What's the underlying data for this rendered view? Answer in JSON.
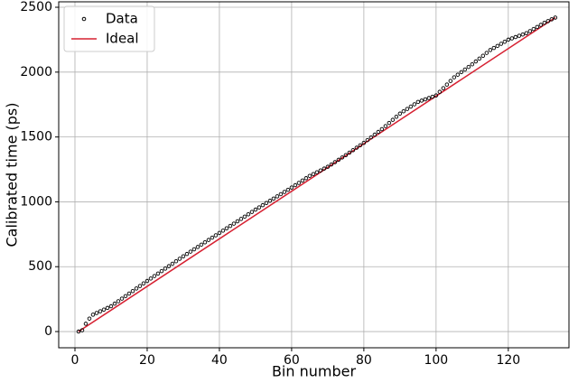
{
  "chart_data": {
    "type": "scatter",
    "xlabel": "Bin number",
    "ylabel": "Calibrated time (ps)",
    "xlim": [
      -4.5,
      136.8
    ],
    "ylim": [
      -125,
      2542
    ],
    "xticks": [
      0,
      20,
      40,
      60,
      80,
      100,
      120
    ],
    "yticks": [
      0,
      500,
      1000,
      1500,
      2000,
      2500
    ],
    "grid": true,
    "legend": "upper left",
    "series": [
      {
        "name": "Data",
        "type": "scatter",
        "color": "#000000",
        "x": [
          1,
          2,
          3,
          4,
          5,
          6,
          7,
          8,
          9,
          10,
          11,
          12,
          13,
          14,
          15,
          16,
          17,
          18,
          19,
          20,
          21,
          22,
          23,
          24,
          25,
          26,
          27,
          28,
          29,
          30,
          31,
          32,
          33,
          34,
          35,
          36,
          37,
          38,
          39,
          40,
          41,
          42,
          43,
          44,
          45,
          46,
          47,
          48,
          49,
          50,
          51,
          52,
          53,
          54,
          55,
          56,
          57,
          58,
          59,
          60,
          61,
          62,
          63,
          64,
          65,
          66,
          67,
          68,
          69,
          70,
          71,
          72,
          73,
          74,
          75,
          76,
          77,
          78,
          79,
          80,
          81,
          82,
          83,
          84,
          85,
          86,
          87,
          88,
          89,
          90,
          91,
          92,
          93,
          94,
          95,
          96,
          97,
          98,
          99,
          100,
          101,
          102,
          103,
          104,
          105,
          106,
          107,
          108,
          109,
          110,
          111,
          112,
          113,
          114,
          115,
          116,
          117,
          118,
          119,
          120,
          121,
          122,
          123,
          124,
          125,
          126,
          127,
          128,
          129,
          130,
          131,
          132,
          133
        ],
        "values": [
          0,
          10,
          60,
          100,
          130,
          143,
          156,
          169,
          182,
          195,
          215,
          234,
          254,
          273,
          293,
          312,
          332,
          351,
          371,
          390,
          409,
          428,
          447,
          466,
          485,
          504,
          523,
          542,
          561,
          580,
          598,
          616,
          634,
          652,
          670,
          688,
          706,
          724,
          742,
          760,
          778,
          796,
          814,
          832,
          850,
          868,
          886,
          904,
          922,
          940,
          957,
          974,
          991,
          1008,
          1025,
          1042,
          1059,
          1076,
          1093,
          1110,
          1128,
          1146,
          1164,
          1182,
          1200,
          1214,
          1228,
          1242,
          1256,
          1270,
          1288,
          1306,
          1324,
          1342,
          1360,
          1379,
          1398,
          1417,
          1436,
          1455,
          1476,
          1497,
          1518,
          1539,
          1560,
          1584,
          1608,
          1632,
          1656,
          1680,
          1698,
          1716,
          1734,
          1752,
          1770,
          1780,
          1790,
          1800,
          1810,
          1820,
          1848,
          1876,
          1904,
          1932,
          1960,
          1980,
          2000,
          2020,
          2040,
          2060,
          2082,
          2104,
          2126,
          2148,
          2170,
          2186,
          2202,
          2218,
          2234,
          2250,
          2260,
          2270,
          2280,
          2290,
          2300,
          2316,
          2332,
          2348,
          2364,
          2380,
          2393,
          2407,
          2420
        ]
      },
      {
        "name": "Ideal",
        "type": "line",
        "color": "#d62031",
        "x": [
          1,
          133
        ],
        "values": [
          0,
          2420
        ]
      }
    ]
  }
}
